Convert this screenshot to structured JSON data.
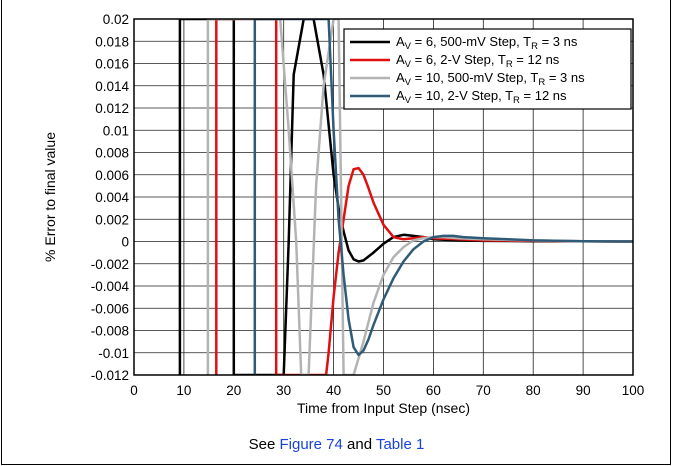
{
  "chart_data": {
    "type": "line",
    "title": "",
    "xlabel": "Time from Input Step (nsec)",
    "ylabel": "% Error to final value",
    "xlim": [
      0,
      100
    ],
    "ylim": [
      -0.012,
      0.02
    ],
    "x_ticks": [
      "0",
      "10",
      "20",
      "30",
      "40",
      "50",
      "60",
      "70",
      "80",
      "90",
      "100"
    ],
    "y_ticks": [
      "0.02",
      "0.018",
      "0.016",
      "0.014",
      "0.012",
      "0.01",
      "0.008",
      "0.006",
      "0.004",
      "0.002",
      "0",
      "-0.002",
      "-0.004",
      "-0.006",
      "-0.008",
      "-0.01",
      "-0.012"
    ],
    "grid": true,
    "legend_position": "top-right",
    "series": [
      {
        "name_main": "A",
        "name_sub": "V",
        "name_mid": " = 6, 500-mV Step, T",
        "name_sub2": "R",
        "name_end": " = 3 ns",
        "color": "#000000",
        "x": [
          9.2,
          9.2,
          20,
          20,
          30,
          31,
          32,
          34,
          36,
          38,
          40,
          41,
          42,
          43,
          44,
          45,
          46,
          48,
          50,
          52,
          54,
          56,
          58,
          60,
          65,
          70,
          80,
          90,
          100
        ],
        "y": [
          -0.012,
          0.02,
          0.02,
          -0.012,
          -0.012,
          0.0,
          0.015,
          0.02,
          0.02,
          0.015,
          0.006,
          0.003,
          0.0009,
          -0.0008,
          -0.0016,
          -0.0018,
          -0.0017,
          -0.001,
          -0.0002,
          0.0004,
          0.0006,
          0.0005,
          0.0004,
          0.0002,
          0.0001,
          5e-05,
          3e-05,
          2e-05,
          0.0
        ]
      },
      {
        "name_main": "A",
        "name_sub": "V",
        "name_mid": " = 6, 2-V Step, T",
        "name_sub2": "R",
        "name_end": " = 12 ns",
        "color": "#e01010",
        "x": [
          16.5,
          16.5,
          28.5,
          28.5,
          38.5,
          39,
          40,
          41,
          42,
          43,
          44,
          45,
          46,
          47,
          48,
          50,
          52,
          54,
          56,
          58,
          60,
          65,
          70,
          80,
          90,
          100
        ],
        "y": [
          -0.012,
          0.02,
          0.02,
          -0.012,
          -0.012,
          -0.01,
          -0.005,
          -0.001,
          0.002,
          0.005,
          0.0065,
          0.0066,
          0.006,
          0.0048,
          0.0035,
          0.0015,
          0.0004,
          0.0002,
          0.0003,
          0.0004,
          0.0003,
          0.0002,
          0.0001,
          5e-05,
          2e-05,
          0.0
        ]
      },
      {
        "name_main": "A",
        "name_sub": "V",
        "name_mid": " = 10, 500-mV Step, T",
        "name_sub2": "R",
        "name_end": " = 3 ns",
        "color": "#b3b3b3",
        "x": [
          14.8,
          14.8,
          29.3,
          31,
          32.5,
          33.5,
          35,
          36.5,
          38,
          40,
          41,
          42,
          44,
          46,
          48,
          50,
          52,
          54,
          56,
          58,
          60,
          62,
          65,
          70,
          80,
          90,
          100
        ],
        "y": [
          -0.012,
          0.02,
          0.02,
          0.01,
          0.0,
          -0.012,
          -0.012,
          0.005,
          0.014,
          0.02,
          0.02,
          -0.012,
          -0.012,
          -0.009,
          -0.0055,
          -0.003,
          -0.0014,
          -0.0005,
          0.0001,
          0.0003,
          0.0004,
          0.0004,
          0.0003,
          0.0002,
          0.0001,
          3e-05,
          0.0
        ]
      },
      {
        "name_main": "A",
        "name_sub": "V",
        "name_mid": " = 10, 2-V Step, T",
        "name_sub2": "R",
        "name_end": " = 12 ns",
        "color": "#2f5b78",
        "x": [
          24.2,
          24.2,
          39,
          40,
          41,
          42,
          43,
          44,
          45,
          46,
          47,
          48,
          50,
          52,
          54,
          56,
          58,
          60,
          62,
          64,
          66,
          70,
          75,
          80,
          90,
          100
        ],
        "y": [
          -0.012,
          0.02,
          0.02,
          0.01,
          0.002,
          -0.003,
          -0.007,
          -0.0095,
          -0.0102,
          -0.0098,
          -0.0088,
          -0.0075,
          -0.0052,
          -0.0033,
          -0.0018,
          -0.0007,
          0.0,
          0.0004,
          0.0005,
          0.0005,
          0.0004,
          0.0003,
          0.0002,
          0.0001,
          3e-05,
          0.0
        ]
      }
    ]
  },
  "caption": {
    "prefix": "See ",
    "link1": "Figure 74",
    "middle": " and ",
    "link2": "Table 1"
  }
}
